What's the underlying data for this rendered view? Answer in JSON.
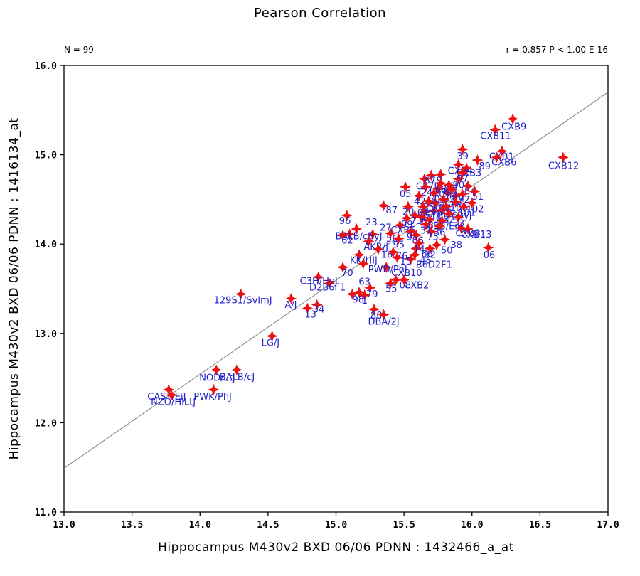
{
  "chart_data": {
    "type": "scatter",
    "title": "Pearson Correlation",
    "n_label": "N = 99",
    "r_label": "r = 0.857 P < 1.00 E-16",
    "xlabel": "Hippocampus M430v2 BXD 06/06 PDNN : 1432466_a_at",
    "ylabel": "Hippocampus M430v2 BXD 06/06 PDNN : 1416134_at",
    "xlim": [
      13.0,
      17.0
    ],
    "ylim": [
      11.0,
      16.0
    ],
    "x_ticks": [
      13.0,
      13.5,
      14.0,
      14.5,
      15.0,
      15.5,
      16.0,
      16.5,
      17.0
    ],
    "y_ticks": [
      11.0,
      12.0,
      13.0,
      14.0,
      15.0,
      16.0
    ],
    "grid": false,
    "marker": "four-point-diamond",
    "point_color": "#ee1111",
    "label_color": "#2222cc",
    "line_color": "#808080",
    "axis_color": "#000000",
    "trend_line": {
      "x1": 13.0,
      "y1": 11.49,
      "x2": 17.0,
      "y2": 15.7
    },
    "points": [
      [
        16.3,
        15.4,
        "CXB9",
        -16,
        15
      ],
      [
        16.17,
        15.28,
        "CXB11",
        -21,
        13
      ],
      [
        15.93,
        15.06,
        "39",
        -8,
        14
      ],
      [
        16.22,
        15.04,
        "CXB1",
        -18,
        12
      ],
      [
        16.18,
        14.97,
        "CXB6",
        -7,
        11
      ],
      [
        16.04,
        14.94,
        "89",
        2,
        13
      ],
      [
        15.9,
        14.89,
        "CXB4",
        -15,
        13
      ],
      [
        15.96,
        14.85,
        "CXB3",
        -14,
        11
      ],
      [
        16.67,
        14.97,
        "CXB12",
        -21,
        16
      ],
      [
        16.12,
        13.96,
        "06",
        -7,
        15
      ],
      [
        15.65,
        14.73,
        "C57BL/6J",
        -12,
        15
      ],
      [
        15.7,
        14.77,
        "67",
        -10,
        12
      ],
      [
        15.77,
        14.78,
        "9",
        -6,
        13
      ],
      [
        15.51,
        14.64,
        "05",
        -8,
        14
      ],
      [
        15.66,
        14.64,
        "24",
        -7,
        12
      ],
      [
        15.75,
        14.62,
        "40",
        -7,
        12
      ],
      [
        15.97,
        14.65,
        "84",
        -5,
        12
      ],
      [
        16.02,
        14.59,
        "51",
        -4,
        12
      ],
      [
        15.82,
        14.57,
        "65",
        -6,
        13
      ],
      [
        15.93,
        14.56,
        "92",
        -6,
        12
      ],
      [
        15.88,
        14.54,
        "02",
        -7,
        12
      ],
      [
        15.61,
        14.54,
        "42",
        -7,
        12
      ],
      [
        15.53,
        14.42,
        "20",
        -8,
        12
      ],
      [
        15.65,
        14.36,
        "44",
        -6,
        13
      ],
      [
        15.72,
        14.37,
        "48",
        -6,
        13
      ],
      [
        15.73,
        14.46,
        "CXB7",
        -13,
        12
      ],
      [
        15.78,
        14.38,
        "C57BL/6ByJ",
        -33,
        12
      ],
      [
        15.58,
        14.32,
        "73",
        -6,
        12
      ],
      [
        15.63,
        14.3,
        "74",
        -4,
        12
      ],
      [
        15.69,
        14.27,
        "83",
        -3,
        12
      ],
      [
        15.78,
        14.26,
        "WSB/EiJ",
        -25,
        12
      ],
      [
        15.47,
        14.21,
        "CXB5",
        -13,
        11
      ],
      [
        15.4,
        14.12,
        "56",
        -6,
        12
      ],
      [
        15.55,
        14.14,
        "93",
        -6,
        12
      ],
      [
        15.59,
        14.1,
        "86",
        -6,
        12
      ],
      [
        15.7,
        14.14,
        "75",
        -6,
        12
      ],
      [
        15.92,
        14.18,
        "CXB8",
        -8,
        12
      ],
      [
        15.97,
        14.17,
        "CXB13",
        -10,
        12
      ],
      [
        15.8,
        14.05,
        "38",
        8,
        12
      ],
      [
        15.74,
        13.99,
        "50",
        6,
        12
      ],
      [
        15.59,
        13.95,
        "66",
        7,
        12
      ],
      [
        15.58,
        13.88,
        "45",
        7,
        12
      ],
      [
        15.55,
        13.83,
        "B6D2F1",
        7,
        12
      ],
      [
        15.37,
        13.74,
        "CXB10",
        7,
        12
      ],
      [
        15.44,
        13.6,
        "08",
        5,
        12
      ],
      [
        15.5,
        13.6,
        "CXB2",
        0,
        12
      ],
      [
        15.4,
        13.56,
        "55",
        -7,
        12
      ],
      [
        15.25,
        13.51,
        "63",
        -16,
        -4
      ],
      [
        15.17,
        13.46,
        "79",
        10,
        7
      ],
      [
        15.12,
        13.44,
        "98",
        0,
        12
      ],
      [
        15.21,
        13.43,
        "1",
        -4,
        12
      ],
      [
        15.28,
        13.27,
        "80",
        -5,
        13
      ],
      [
        15.35,
        13.21,
        "DBA/2J",
        -22,
        14
      ],
      [
        15.08,
        14.32,
        "96",
        -11,
        12
      ],
      [
        15.35,
        14.43,
        "87",
        3,
        11
      ],
      [
        15.15,
        14.17,
        "23",
        13,
        -5
      ],
      [
        15.27,
        14.11,
        "27",
        10,
        -5
      ],
      [
        15.1,
        14.11,
        "BALB/cByJ",
        -20,
        7
      ],
      [
        15.05,
        14.1,
        "62",
        -2,
        12
      ],
      [
        15.24,
        14.03,
        "AKR/J",
        -7,
        12
      ],
      [
        15.31,
        13.94,
        "16",
        4,
        12
      ],
      [
        15.42,
        13.91,
        "76",
        4,
        10
      ],
      [
        15.45,
        13.85,
        "15",
        4,
        10
      ],
      [
        15.17,
        13.88,
        "KK/HIJ",
        -13,
        12
      ],
      [
        15.2,
        13.78,
        "PWD/PhJ",
        7,
        12
      ],
      [
        15.05,
        13.74,
        "70",
        -2,
        12
      ],
      [
        14.3,
        13.44,
        "129S1/SvImJ",
        -38,
        13
      ],
      [
        14.67,
        13.39,
        "A/J",
        -9,
        13
      ],
      [
        14.87,
        13.63,
        "C3H/HeJ",
        -26,
        10
      ],
      [
        14.95,
        13.56,
        "D2B6F1",
        -28,
        10
      ],
      [
        14.86,
        13.32,
        "34",
        -6,
        11
      ],
      [
        14.79,
        13.28,
        "13",
        -4,
        13
      ],
      [
        14.53,
        12.97,
        "LG/J",
        -15,
        14
      ],
      [
        14.12,
        12.59,
        "NOD/LtJ",
        -24,
        15
      ],
      [
        14.27,
        12.59,
        "BALB/cJ",
        -24,
        14
      ],
      [
        14.1,
        12.37,
        "PWK/PhJ",
        -28,
        14
      ],
      [
        13.77,
        12.37,
        "CAST/EiJ",
        -30,
        14
      ],
      [
        13.79,
        12.31,
        "NZO/HILtJ",
        -29,
        14
      ],
      [
        15.77,
        14.68,
        "68"
      ],
      [
        15.83,
        14.66,
        "69"
      ],
      [
        15.9,
        14.73,
        "90"
      ],
      [
        15.72,
        14.57,
        "60"
      ],
      [
        15.79,
        14.5,
        "61"
      ],
      [
        15.85,
        14.61,
        "64"
      ],
      [
        15.68,
        14.48,
        "85"
      ],
      [
        15.64,
        14.42,
        "01"
      ],
      [
        15.81,
        14.42,
        "43"
      ],
      [
        15.88,
        14.47,
        "100"
      ],
      [
        15.94,
        14.42,
        "101"
      ],
      [
        16.0,
        14.46,
        "102"
      ],
      [
        15.52,
        14.29,
        "99"
      ],
      [
        15.46,
        14.06,
        "95"
      ],
      [
        15.83,
        14.34,
        "32"
      ],
      [
        15.9,
        14.3,
        "33"
      ],
      [
        15.76,
        14.2,
        "36"
      ],
      [
        15.66,
        14.22,
        "31"
      ],
      [
        15.61,
        14.01,
        "14"
      ],
      [
        15.69,
        13.95,
        "12"
      ],
      [
        15.93,
        14.8,
        "97"
      ]
    ]
  }
}
